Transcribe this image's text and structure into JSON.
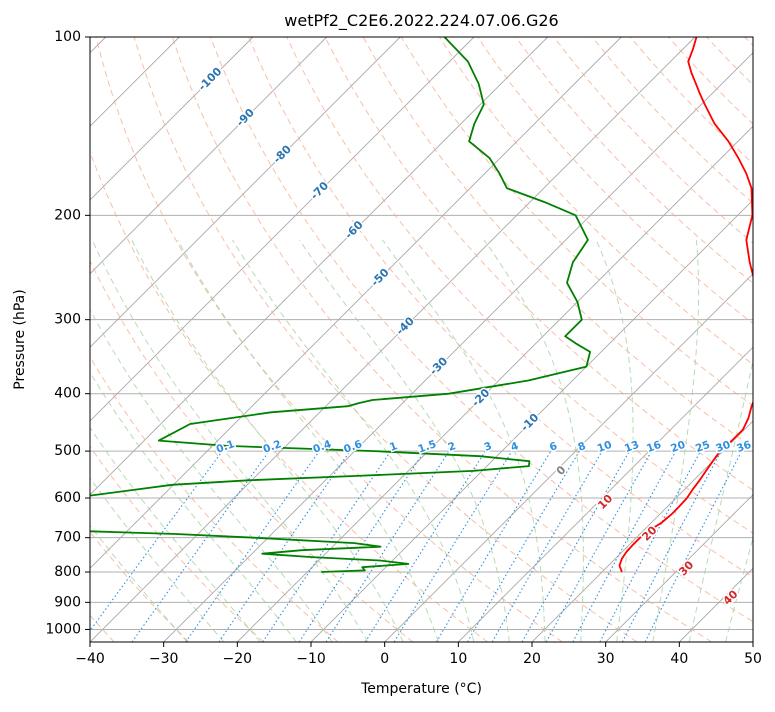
{
  "chart_data": {
    "type": "line",
    "subtype": "skew-t log-p",
    "title": "wetPf2_C2E6.2022.224.07.06.G26",
    "xlabel": "Temperature (°C)",
    "ylabel": "Pressure (hPa)",
    "xlim": [
      -40,
      50
    ],
    "ylim": [
      1050,
      100
    ],
    "x_ticks": [
      -40,
      -30,
      -20,
      -10,
      0,
      10,
      20,
      30,
      40,
      50
    ],
    "y_ticks": [
      100,
      200,
      300,
      400,
      500,
      600,
      700,
      800,
      900,
      1000
    ],
    "grid": true,
    "series": [
      {
        "name": "Temperature",
        "color": "#ff0000",
        "points": [
          [
            800,
            22.7
          ],
          [
            790,
            22.1
          ],
          [
            780,
            21.5
          ],
          [
            760,
            20.9
          ],
          [
            740,
            20.6
          ],
          [
            720,
            20.5
          ],
          [
            700,
            20.5
          ],
          [
            680,
            20.8
          ],
          [
            660,
            21.4
          ],
          [
            640,
            21.6
          ],
          [
            620,
            21.6
          ],
          [
            600,
            21.5
          ],
          [
            580,
            21.1
          ],
          [
            560,
            20.8
          ],
          [
            540,
            20.4
          ],
          [
            520,
            20.0
          ],
          [
            500,
            19.6
          ],
          [
            480,
            19.8
          ],
          [
            460,
            19.8
          ],
          [
            440,
            19.0
          ],
          [
            420,
            17.8
          ],
          [
            400,
            16.8
          ],
          [
            380,
            15.9
          ],
          [
            360,
            14.1
          ],
          [
            340,
            11.9
          ],
          [
            320,
            10.1
          ],
          [
            300,
            7.6
          ],
          [
            280,
            4.7
          ],
          [
            260,
            1.5
          ],
          [
            240,
            -2.0
          ],
          [
            220,
            -5.5
          ],
          [
            200,
            -8.0
          ],
          [
            180,
            -11.8
          ],
          [
            170,
            -14.5
          ],
          [
            160,
            -17.7
          ],
          [
            150,
            -21.3
          ],
          [
            140,
            -25.6
          ],
          [
            130,
            -29.5
          ],
          [
            125,
            -31.5
          ],
          [
            120,
            -33.5
          ],
          [
            115,
            -35.6
          ],
          [
            110,
            -37.6
          ],
          [
            105,
            -38.6
          ],
          [
            100,
            -39.8
          ]
        ]
      },
      {
        "name": "Dewpoint",
        "color": "#008000",
        "points": [
          [
            800,
            -18.1
          ],
          [
            795,
            -12.4
          ],
          [
            785,
            -13.2
          ],
          [
            775,
            -7.4
          ],
          [
            765,
            -11.7
          ],
          [
            755,
            -21.4
          ],
          [
            745,
            -28.6
          ],
          [
            735,
            -23.7
          ],
          [
            725,
            -13.5
          ],
          [
            715,
            -17.5
          ],
          [
            700,
            -31.9
          ],
          [
            690,
            -43.0
          ],
          [
            680,
            -60.0
          ],
          [
            600,
            -62.0
          ],
          [
            570,
            -50.2
          ],
          [
            560,
            -40.5
          ],
          [
            550,
            -25.5
          ],
          [
            540,
            -11.2
          ],
          [
            530,
            -4.3
          ],
          [
            520,
            -4.9
          ],
          [
            510,
            -12.3
          ],
          [
            500,
            -27.3
          ],
          [
            490,
            -48.0
          ],
          [
            480,
            -58.0
          ],
          [
            450,
            -56.0
          ],
          [
            430,
            -46.6
          ],
          [
            420,
            -37.0
          ],
          [
            415,
            -36.0
          ],
          [
            410,
            -34.5
          ],
          [
            400,
            -25.0
          ],
          [
            380,
            -16.0
          ],
          [
            360,
            -10.0
          ],
          [
            340,
            -11.5
          ],
          [
            330,
            -14.3
          ],
          [
            320,
            -17.0
          ],
          [
            300,
            -17.0
          ],
          [
            280,
            -20.0
          ],
          [
            260,
            -24.0
          ],
          [
            240,
            -26.0
          ],
          [
            220,
            -27.0
          ],
          [
            200,
            -32.0
          ],
          [
            190,
            -38.0
          ],
          [
            180,
            -45.0
          ],
          [
            170,
            -48.0
          ],
          [
            160,
            -51.5
          ],
          [
            150,
            -56.5
          ],
          [
            140,
            -58.2
          ],
          [
            130,
            -59.5
          ],
          [
            120,
            -63.0
          ],
          [
            110,
            -67.5
          ],
          [
            100,
            -74.0
          ]
        ]
      }
    ],
    "isotherm_labels": [
      "-100",
      "-90",
      "-80",
      "-70",
      "-60",
      "-50",
      "-40",
      "-30",
      "-20",
      "-10"
    ],
    "mixing_ratio_labels": [
      "0.1",
      "0.2",
      "0.4",
      "0.6",
      "1",
      "1.5",
      "2",
      "3",
      "4",
      "6",
      "8",
      "10",
      "13",
      "16",
      "20",
      "25",
      "30",
      "36"
    ],
    "moist_adiabat_labels": [
      "0",
      "10",
      "20",
      "30",
      "40"
    ]
  }
}
